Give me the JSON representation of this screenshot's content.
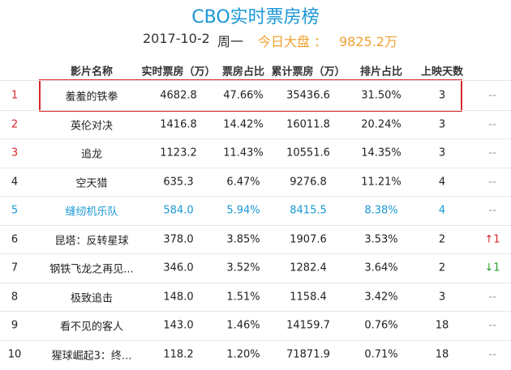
{
  "header": {
    "title": "CBO实时票房榜",
    "date": "2017-10-2",
    "weekday": "周一",
    "total_label": "今日大盘 ：",
    "total_value": "9825.2万"
  },
  "table": {
    "columns": [
      "影片名称",
      "实时票房（万）",
      "票房占比",
      "累计票房（万）",
      "排片占比",
      "上映天数"
    ],
    "rows": [
      [
        "1",
        "羞羞的铁拳",
        "4682.8",
        "47.66%",
        "35436.6",
        "31.50%",
        "3",
        "--"
      ],
      [
        "2",
        "英伦对决",
        "1416.8",
        "14.42%",
        "16011.8",
        "20.24%",
        "3",
        "--"
      ],
      [
        "3",
        "追龙",
        "1123.2",
        "11.43%",
        "10551.6",
        "14.35%",
        "3",
        "--"
      ],
      [
        "4",
        "空天猎",
        "635.3",
        "6.47%",
        "9276.8",
        "11.21%",
        "4",
        "--"
      ],
      [
        "5",
        "缝纫机乐队",
        "584.0",
        "5.94%",
        "8415.5",
        "8.38%",
        "4",
        "--"
      ],
      [
        "6",
        "昆塔：反转星球",
        "378.0",
        "3.85%",
        "1907.6",
        "3.53%",
        "2",
        "↑1"
      ],
      [
        "7",
        "钢铁飞龙之再见...",
        "346.0",
        "3.52%",
        "1282.4",
        "3.64%",
        "2",
        "↓1"
      ],
      [
        "8",
        "极致追击",
        "148.0",
        "1.51%",
        "1158.4",
        "3.42%",
        "3",
        "--"
      ],
      [
        "9",
        "看不见的客人",
        "143.0",
        "1.46%",
        "14159.7",
        "0.76%",
        "18",
        "--"
      ],
      [
        "10",
        "猩球崛起3：终...",
        "118.2",
        "1.20%",
        "71871.9",
        "0.71%",
        "18",
        "--"
      ]
    ]
  }
}
